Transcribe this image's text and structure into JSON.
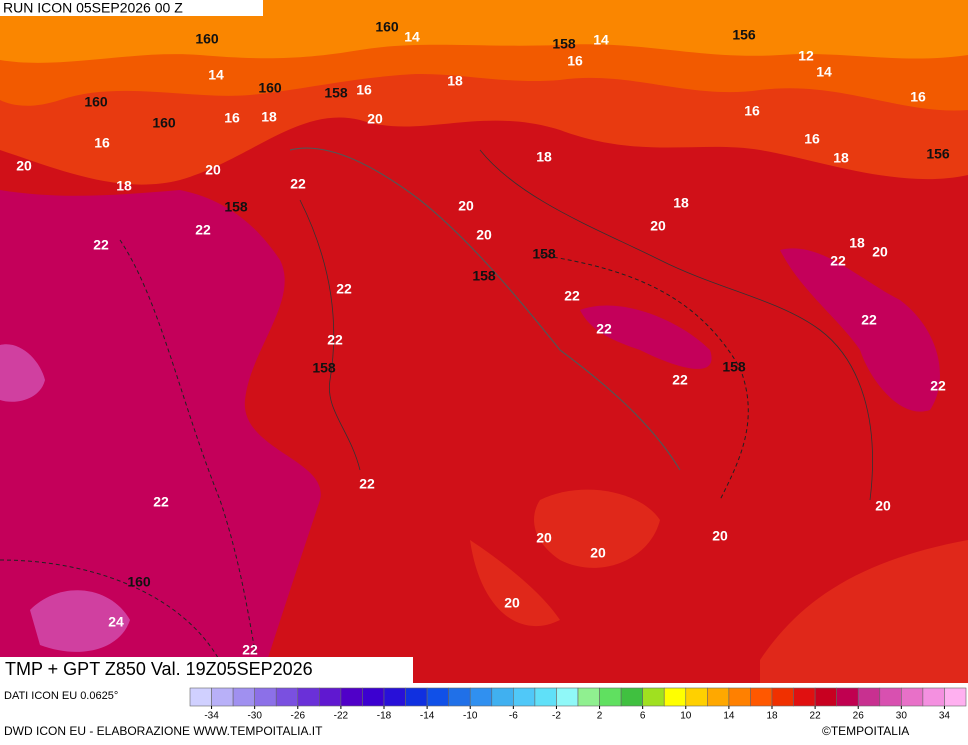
{
  "header": {
    "run": "RUN ICON 05SEP2026 00 Z"
  },
  "title": "TMP + GPT Z850 Val. 19Z05SEP2026",
  "source": "DATI ICON EU 0.0625°",
  "credit": "DWD ICON EU - ELABORAZIONE WWW.TEMPOITALIA.IT",
  "copyright": "©TEMPOITALIA",
  "legend": {
    "range": [
      -36,
      36
    ],
    "ticks": [
      -34,
      -30,
      -26,
      -22,
      -18,
      -14,
      -10,
      -6,
      -2,
      2,
      6,
      10,
      14,
      18,
      22,
      26,
      30,
      34
    ],
    "colors": [
      "#d0d0ff",
      "#b8b0f8",
      "#a090f0",
      "#8c70e8",
      "#7a50e0",
      "#6a30d8",
      "#6018d0",
      "#5000c8",
      "#3c00d0",
      "#2810d8",
      "#1030e0",
      "#1050e8",
      "#2070e8",
      "#3090f0",
      "#40b0f0",
      "#50c8f8",
      "#60e0f8",
      "#90f8f8",
      "#90f090",
      "#60e060",
      "#40c040",
      "#a0e020",
      "#ffff00",
      "#ffd000",
      "#ffa800",
      "#ff8000",
      "#ff5800",
      "#f03000",
      "#e01010",
      "#c80020",
      "#c00050",
      "#c83090",
      "#d850b0",
      "#e870c8",
      "#f490e0",
      "#ffb0f0"
    ]
  },
  "map_labels": [
    "160",
    "160",
    "14",
    "158",
    "14",
    "156",
    "12",
    "14",
    "14",
    "16",
    "18",
    "160",
    "160",
    "158",
    "16",
    "160",
    "16",
    "18",
    "20",
    "16",
    "16",
    "16",
    "16",
    "20",
    "20",
    "18",
    "18",
    "156",
    "18",
    "22",
    "158",
    "20",
    "18",
    "22",
    "20",
    "20",
    "18",
    "20",
    "22",
    "158",
    "22",
    "158",
    "22",
    "22",
    "22",
    "22",
    "22",
    "158",
    "158",
    "22",
    "22",
    "22",
    "22",
    "20",
    "20",
    "20",
    "20",
    "160",
    "20",
    "24",
    "22"
  ]
}
